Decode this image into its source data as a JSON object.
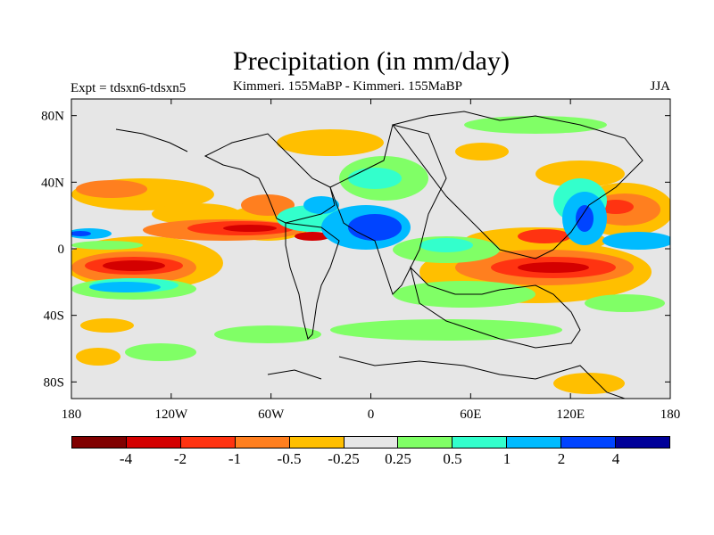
{
  "title": "Precipitation (in mm/day)",
  "subtitle_left": "Expt = tdsxn6-tdsxn5",
  "subtitle_center": "Kimmeri. 155MaBP - Kimmeri. 155MaBP",
  "subtitle_right": "JJA",
  "axes": {
    "x_ticks": [
      "180",
      "120W",
      "60W",
      "0",
      "60E",
      "120E",
      "180"
    ],
    "y_ticks": [
      "80N",
      "40N",
      "0",
      "40S",
      "80S"
    ]
  },
  "colorbar": {
    "colors": [
      "#800000",
      "#d40000",
      "#ff3311",
      "#ff7f1f",
      "#ffbf00",
      "#e6e6e6",
      "#80ff66",
      "#33ffcc",
      "#00bbff",
      "#0044ff",
      "#000099"
    ],
    "labels": [
      "-4",
      "-2",
      "-1",
      "-0.5",
      "-0.25",
      "0.25",
      "0.5",
      "1",
      "2",
      "4"
    ]
  },
  "colors": {
    "background": "#e6e6e6",
    "coast": "#000000"
  }
}
